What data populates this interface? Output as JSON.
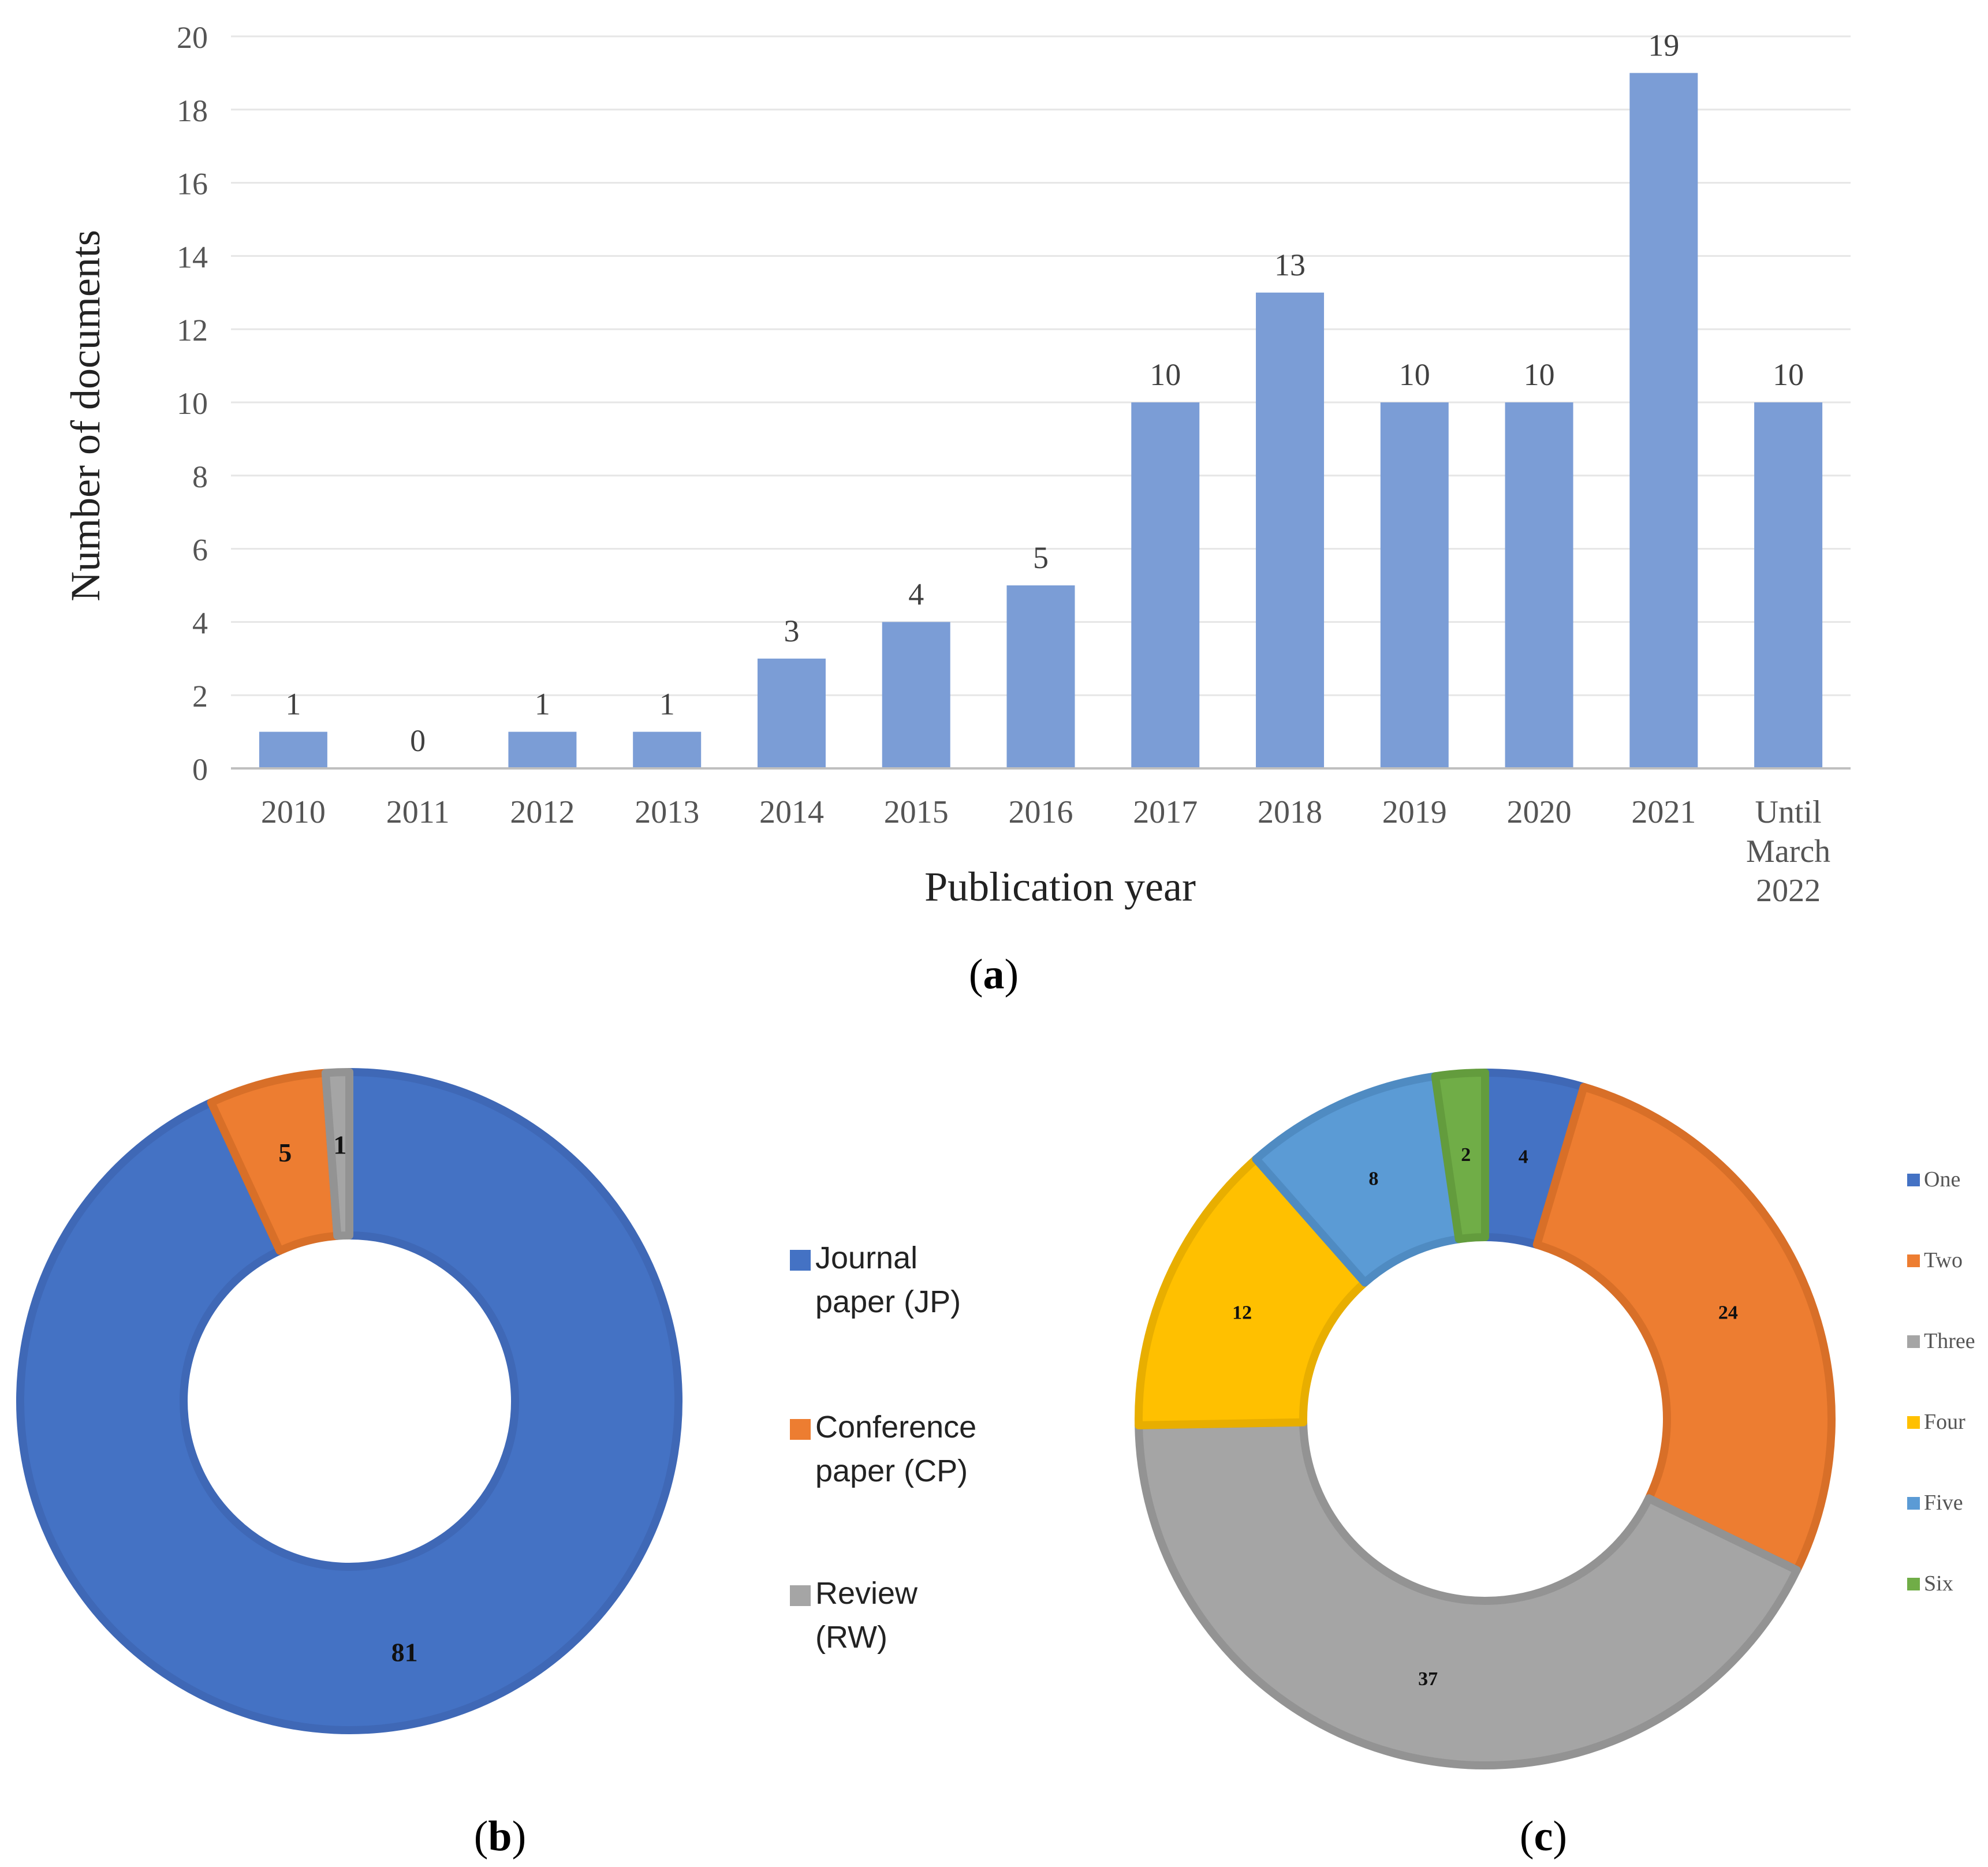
{
  "chart_data": [
    {
      "id": "a",
      "type": "bar",
      "panel_label": "a",
      "title": "",
      "xlabel": "Publication year",
      "ylabel": "Number of documents",
      "ylim": [
        0,
        20
      ],
      "yticks": [
        0,
        2,
        4,
        6,
        8,
        10,
        12,
        14,
        16,
        18,
        20
      ],
      "grid": true,
      "categories": [
        "2010",
        "2011",
        "2012",
        "2013",
        "2014",
        "2015",
        "2016",
        "2017",
        "2018",
        "2019",
        "2020",
        "2021",
        "Until March 2022"
      ],
      "category_lines": [
        [
          "2010"
        ],
        [
          "2011"
        ],
        [
          "2012"
        ],
        [
          "2013"
        ],
        [
          "2014"
        ],
        [
          "2015"
        ],
        [
          "2016"
        ],
        [
          "2017"
        ],
        [
          "2018"
        ],
        [
          "2019"
        ],
        [
          "2020"
        ],
        [
          "2021"
        ],
        [
          "Until",
          "March",
          "2022"
        ]
      ],
      "values": [
        1,
        0,
        1,
        1,
        3,
        4,
        5,
        10,
        13,
        10,
        10,
        19,
        10
      ],
      "color": "#7b9dd6"
    },
    {
      "id": "b",
      "type": "pie",
      "style": "donut",
      "panel_label": "b",
      "legend_position": "right",
      "slices": [
        {
          "label": "Journal paper (JP)",
          "legend_lines": [
            "Journal",
            "paper (JP)"
          ],
          "value": 81,
          "color": "#4472c4",
          "border": "#3f68b6"
        },
        {
          "label": "Conference paper (CP)",
          "legend_lines": [
            "Conference",
            "paper (CP)"
          ],
          "value": 5,
          "color": "#ed7d31",
          "border": "#d86f28"
        },
        {
          "label": "Review (RW)",
          "legend_lines": [
            "Review",
            "(RW)"
          ],
          "value": 1,
          "color": "#a5a5a5",
          "border": "#939393"
        }
      ]
    },
    {
      "id": "c",
      "type": "pie",
      "style": "donut",
      "panel_label": "c",
      "legend_position": "right",
      "slices": [
        {
          "label": "One",
          "value": 4,
          "color": "#4472c4",
          "border": "#3f68b6"
        },
        {
          "label": "Two",
          "value": 24,
          "color": "#ed7d31",
          "border": "#d86f28"
        },
        {
          "label": "Three",
          "value": 37,
          "color": "#a5a5a5",
          "border": "#939393"
        },
        {
          "label": "Four",
          "value": 12,
          "color": "#ffc000",
          "border": "#e8ae00"
        },
        {
          "label": "Five",
          "value": 8,
          "color": "#5b9bd5",
          "border": "#4f8bc2"
        },
        {
          "label": "Six",
          "value": 2,
          "color": "#70ad47",
          "border": "#639c3d"
        }
      ]
    }
  ]
}
